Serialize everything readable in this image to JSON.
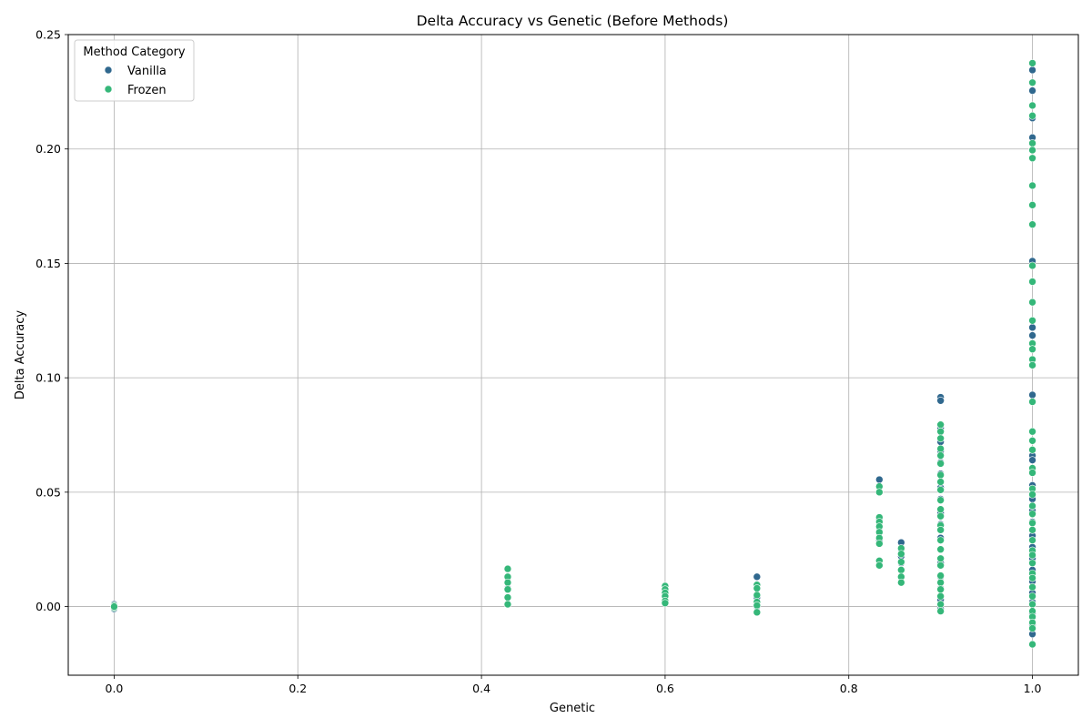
{
  "chart_data": {
    "type": "scatter",
    "title": "Delta Accuracy vs Genetic (Before Methods)",
    "xlabel": "Genetic",
    "ylabel": "Delta Accuracy",
    "xlim": [
      -0.05,
      1.05
    ],
    "ylim": [
      -0.03,
      0.25
    ],
    "x_ticks": [
      0.0,
      0.2,
      0.4,
      0.6,
      0.8,
      1.0
    ],
    "x_tick_labels": [
      "0.0",
      "0.2",
      "0.4",
      "0.6",
      "0.8",
      "1.0"
    ],
    "y_ticks": [
      0.0,
      0.05,
      0.1,
      0.15,
      0.2,
      0.25
    ],
    "y_tick_labels": [
      "0.00",
      "0.05",
      "0.10",
      "0.15",
      "0.20",
      "0.25"
    ],
    "grid": true,
    "legend": {
      "title": "Method Category",
      "position": "top-left",
      "entries": [
        "Vanilla",
        "Frozen"
      ]
    },
    "series": [
      {
        "name": "Vanilla",
        "color": "#30688e",
        "points": [
          [
            0.0,
            0.001
          ],
          [
            0.0,
            -0.001
          ],
          [
            0.4286,
            0.013
          ],
          [
            0.4286,
            0.008
          ],
          [
            0.4286,
            0.001
          ],
          [
            0.6,
            0.006
          ],
          [
            0.6,
            0.002
          ],
          [
            0.7,
            0.013
          ],
          [
            0.7,
            0.008
          ],
          [
            0.7,
            0.004
          ],
          [
            0.7,
            0.0
          ],
          [
            0.8333,
            0.0555
          ],
          [
            0.8333,
            0.038
          ],
          [
            0.8333,
            0.033
          ],
          [
            0.8333,
            0.029
          ],
          [
            0.8333,
            0.02
          ],
          [
            0.8571,
            0.028
          ],
          [
            0.8571,
            0.025
          ],
          [
            0.8571,
            0.022
          ],
          [
            0.8571,
            0.019
          ],
          [
            0.8571,
            0.016
          ],
          [
            0.8571,
            0.013
          ],
          [
            0.9,
            0.0915
          ],
          [
            0.9,
            0.09
          ],
          [
            0.9,
            0.078
          ],
          [
            0.9,
            0.072
          ],
          [
            0.9,
            0.068
          ],
          [
            0.9,
            0.063
          ],
          [
            0.9,
            0.058
          ],
          [
            0.9,
            0.052
          ],
          [
            0.9,
            0.047
          ],
          [
            0.9,
            0.041
          ],
          [
            0.9,
            0.036
          ],
          [
            0.9,
            0.03
          ],
          [
            0.9,
            0.025
          ],
          [
            0.9,
            0.019
          ],
          [
            0.9,
            0.013
          ],
          [
            0.9,
            0.008
          ],
          [
            0.9,
            0.003
          ],
          [
            0.9,
            -0.001
          ],
          [
            1.0,
            0.2345
          ],
          [
            1.0,
            0.2255
          ],
          [
            1.0,
            0.2135
          ],
          [
            1.0,
            0.205
          ],
          [
            1.0,
            0.151
          ],
          [
            1.0,
            0.122
          ],
          [
            1.0,
            0.1185
          ],
          [
            1.0,
            0.0925
          ],
          [
            1.0,
            0.066
          ],
          [
            1.0,
            0.064
          ],
          [
            1.0,
            0.053
          ],
          [
            1.0,
            0.047
          ],
          [
            1.0,
            0.042
          ],
          [
            1.0,
            0.037
          ],
          [
            1.0,
            0.031
          ],
          [
            1.0,
            0.026
          ],
          [
            1.0,
            0.021
          ],
          [
            1.0,
            0.016
          ],
          [
            1.0,
            0.011
          ],
          [
            1.0,
            0.006
          ],
          [
            1.0,
            0.002
          ],
          [
            1.0,
            -0.003
          ],
          [
            1.0,
            -0.008
          ],
          [
            1.0,
            -0.012
          ]
        ]
      },
      {
        "name": "Frozen",
        "color": "#35b779",
        "points": [
          [
            0.0,
            0.0005
          ],
          [
            0.0,
            -0.0005
          ],
          [
            0.0,
            0.0
          ],
          [
            0.4286,
            0.0165
          ],
          [
            0.4286,
            0.013
          ],
          [
            0.4286,
            0.0105
          ],
          [
            0.4286,
            0.0075
          ],
          [
            0.4286,
            0.004
          ],
          [
            0.4286,
            0.001
          ],
          [
            0.6,
            0.009
          ],
          [
            0.6,
            0.0075
          ],
          [
            0.6,
            0.006
          ],
          [
            0.6,
            0.0045
          ],
          [
            0.6,
            0.0025
          ],
          [
            0.6,
            0.0015
          ],
          [
            0.7,
            0.0095
          ],
          [
            0.7,
            0.008
          ],
          [
            0.7,
            0.005
          ],
          [
            0.7,
            0.002
          ],
          [
            0.7,
            0.0005
          ],
          [
            0.7,
            -0.0025
          ],
          [
            0.8333,
            0.0525
          ],
          [
            0.8333,
            0.05
          ],
          [
            0.8333,
            0.039
          ],
          [
            0.8333,
            0.037
          ],
          [
            0.8333,
            0.035
          ],
          [
            0.8333,
            0.0325
          ],
          [
            0.8333,
            0.03
          ],
          [
            0.8333,
            0.0275
          ],
          [
            0.8333,
            0.02
          ],
          [
            0.8333,
            0.018
          ],
          [
            0.8571,
            0.0255
          ],
          [
            0.8571,
            0.023
          ],
          [
            0.8571,
            0.0195
          ],
          [
            0.8571,
            0.016
          ],
          [
            0.8571,
            0.013
          ],
          [
            0.8571,
            0.0105
          ],
          [
            0.9,
            0.0795
          ],
          [
            0.9,
            0.0765
          ],
          [
            0.9,
            0.0735
          ],
          [
            0.9,
            0.069
          ],
          [
            0.9,
            0.066
          ],
          [
            0.9,
            0.0625
          ],
          [
            0.9,
            0.0575
          ],
          [
            0.9,
            0.0545
          ],
          [
            0.9,
            0.051
          ],
          [
            0.9,
            0.0465
          ],
          [
            0.9,
            0.0425
          ],
          [
            0.9,
            0.0395
          ],
          [
            0.9,
            0.0355
          ],
          [
            0.9,
            0.0335
          ],
          [
            0.9,
            0.029
          ],
          [
            0.9,
            0.025
          ],
          [
            0.9,
            0.021
          ],
          [
            0.9,
            0.018
          ],
          [
            0.9,
            0.0135
          ],
          [
            0.9,
            0.0105
          ],
          [
            0.9,
            0.0075
          ],
          [
            0.9,
            0.0045
          ],
          [
            0.9,
            0.001
          ],
          [
            0.9,
            -0.002
          ],
          [
            1.0,
            0.2375
          ],
          [
            1.0,
            0.229
          ],
          [
            1.0,
            0.219
          ],
          [
            1.0,
            0.2145
          ],
          [
            1.0,
            0.2025
          ],
          [
            1.0,
            0.1995
          ],
          [
            1.0,
            0.196
          ],
          [
            1.0,
            0.184
          ],
          [
            1.0,
            0.1755
          ],
          [
            1.0,
            0.167
          ],
          [
            1.0,
            0.149
          ],
          [
            1.0,
            0.142
          ],
          [
            1.0,
            0.133
          ],
          [
            1.0,
            0.125
          ],
          [
            1.0,
            0.115
          ],
          [
            1.0,
            0.1125
          ],
          [
            1.0,
            0.108
          ],
          [
            1.0,
            0.1055
          ],
          [
            1.0,
            0.0895
          ],
          [
            1.0,
            0.0765
          ],
          [
            1.0,
            0.0725
          ],
          [
            1.0,
            0.0685
          ],
          [
            1.0,
            0.0605
          ],
          [
            1.0,
            0.0585
          ],
          [
            1.0,
            0.0515
          ],
          [
            1.0,
            0.049
          ],
          [
            1.0,
            0.044
          ],
          [
            1.0,
            0.0405
          ],
          [
            1.0,
            0.0365
          ],
          [
            1.0,
            0.0335
          ],
          [
            1.0,
            0.029
          ],
          [
            1.0,
            0.0245
          ],
          [
            1.0,
            0.0225
          ],
          [
            1.0,
            0.019
          ],
          [
            1.0,
            0.0145
          ],
          [
            1.0,
            0.0125
          ],
          [
            1.0,
            0.0085
          ],
          [
            1.0,
            0.0045
          ],
          [
            1.0,
            0.001
          ],
          [
            1.0,
            -0.002
          ],
          [
            1.0,
            -0.0045
          ],
          [
            1.0,
            -0.007
          ],
          [
            1.0,
            -0.0095
          ],
          [
            1.0,
            -0.0165
          ]
        ]
      }
    ]
  }
}
